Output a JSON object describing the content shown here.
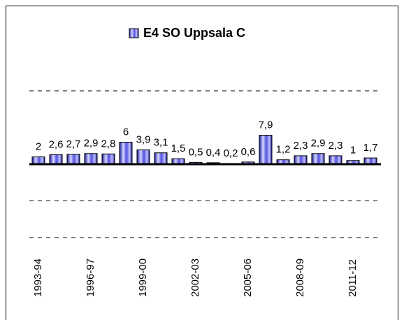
{
  "chart_data": {
    "type": "bar",
    "categories": [
      "1993-94",
      null,
      null,
      "1996-97",
      null,
      null,
      "1999-00",
      null,
      null,
      "2002-03",
      null,
      null,
      "2005-06",
      null,
      null,
      "2008-09",
      null,
      null,
      "2011-12",
      null
    ],
    "series": [
      {
        "name": "E4 SO Uppsala C",
        "color": "#3a3acf",
        "values": [
          2,
          2.6,
          2.7,
          2.9,
          2.8,
          6,
          3.9,
          3.1,
          1.5,
          0.5,
          0.4,
          0.2,
          0.6,
          7.9,
          1.2,
          2.3,
          2.9,
          2.3,
          1,
          1.7
        ],
        "value_labels": [
          "2",
          "2,6",
          "2,7",
          "2,9",
          "2,8",
          "6",
          "3,9",
          "3,1",
          "1,5",
          "0,5",
          "0,4",
          "0,2",
          "0,6",
          "7,9",
          "1,2",
          "2,3",
          "2,9",
          "2,3",
          "1",
          "1,7"
        ]
      }
    ],
    "ylim": [
      -20,
      20
    ],
    "yticks": [
      -20,
      -10,
      0,
      20
    ],
    "grid": true,
    "legend": "top"
  }
}
